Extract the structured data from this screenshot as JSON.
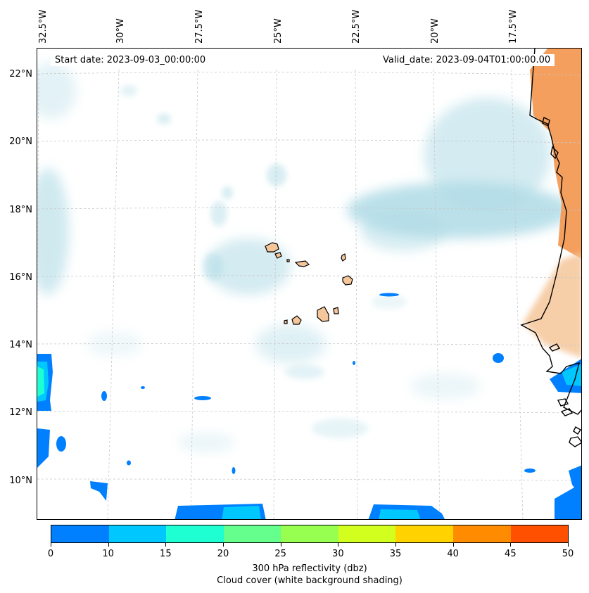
{
  "map": {
    "lon_labels": [
      "32.5°W",
      "30°W",
      "27.5°W",
      "25°W",
      "22.5°W",
      "20°W",
      "17.5°W"
    ],
    "lat_labels": [
      "22°N",
      "20°N",
      "18°N",
      "16°N",
      "14°N",
      "12°N",
      "10°N"
    ],
    "start_date": "Start date: 2023-09-03_00:00:00",
    "valid_date": "Valid_date: 2023-09-04T01:00:00.00",
    "gridlines": true
  },
  "colorbar": {
    "ticks": [
      "0",
      "10",
      "15",
      "20",
      "25",
      "30",
      "35",
      "40",
      "45",
      "50"
    ],
    "colors": [
      "#0080ff",
      "#00c8ff",
      "#1effd2",
      "#64ff8c",
      "#96ff50",
      "#d2ff1e",
      "#ffd200",
      "#ff8c00",
      "#ff5000"
    ],
    "label_line1": "300 hPa reflectivity (dbz)",
    "label_line2": "Cloud cover (white background shading)"
  },
  "colors": {
    "cloud": "#b0dbe6",
    "land_fill": "#f5c69a",
    "warm_shade": "#f39a55"
  }
}
